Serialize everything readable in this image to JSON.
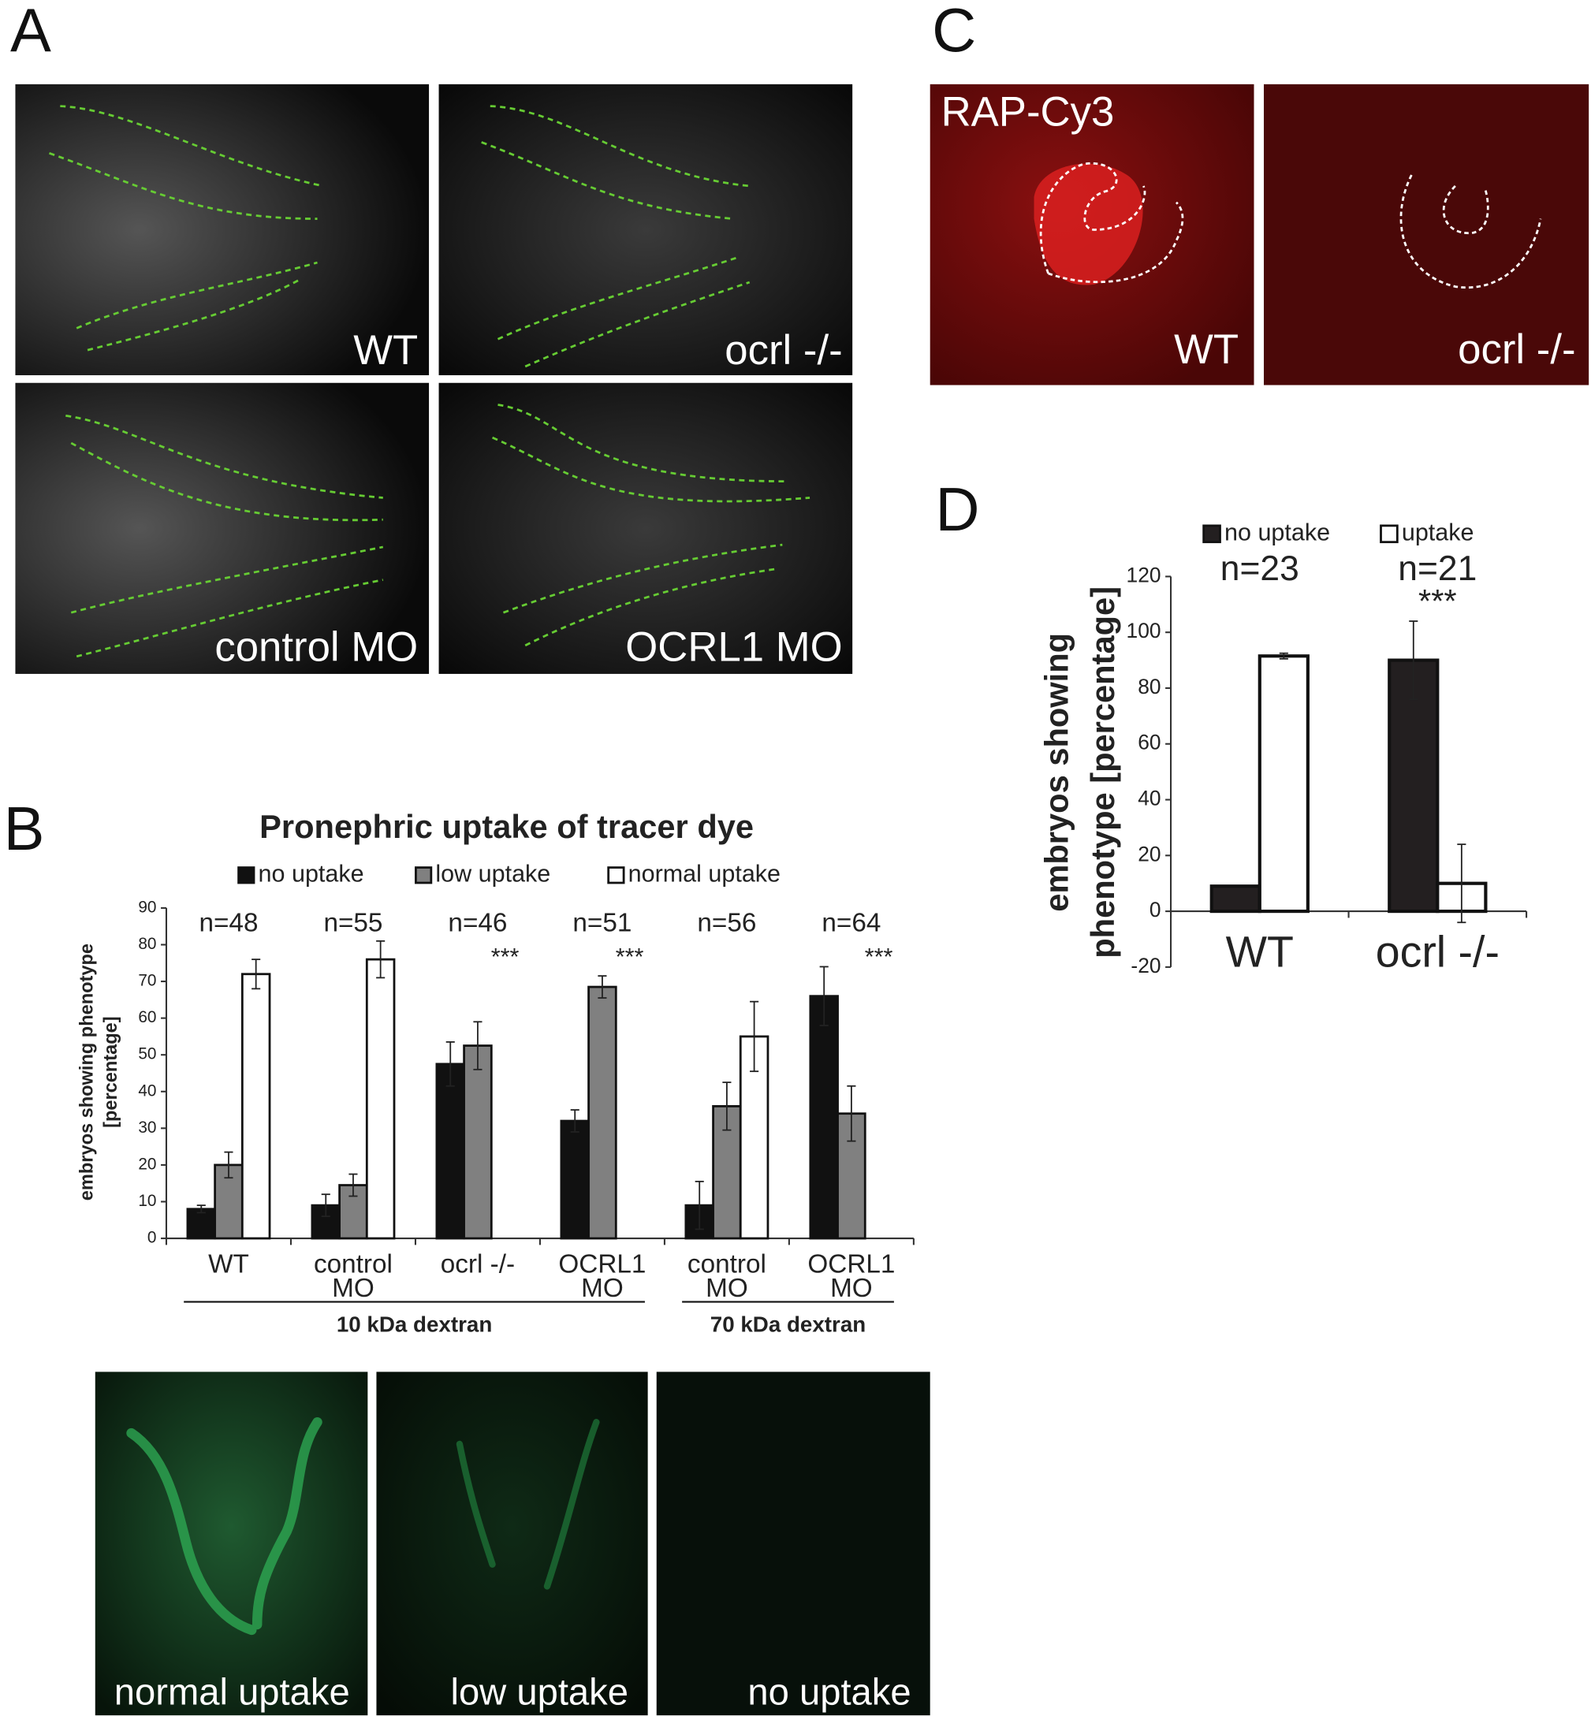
{
  "panel_labels": [
    "A",
    "B",
    "C",
    "D"
  ],
  "panel_a": {
    "labels": [
      "WT",
      "ocrl -/-",
      "control MO",
      "OCRL1 MO"
    ]
  },
  "panel_c": {
    "labels": [
      "RAP-Cy3",
      "WT",
      "ocrl -/-"
    ]
  },
  "panel_b_images": {
    "labels": [
      "normal uptake",
      "low uptake",
      "no uptake"
    ]
  },
  "chart_data": [
    {
      "type": "bar",
      "title": "Pronephric uptake of tracer dye",
      "ylabel": [
        "embryos showing phenotype",
        "[percentage]"
      ],
      "categories": [
        [
          "WT"
        ],
        [
          "control",
          "MO"
        ],
        [
          "ocrl -/-"
        ],
        [
          "OCRL1",
          "MO"
        ],
        [
          "control",
          "MO"
        ],
        [
          "OCRL1",
          "MO"
        ]
      ],
      "n_labels": [
        "n=48",
        "n=55",
        "n=46",
        "n=51",
        "n=56",
        "n=64"
      ],
      "significance": [
        null,
        null,
        "***",
        "***",
        null,
        "***"
      ],
      "groups": [
        {
          "label": "10 kDa dextran",
          "size": 4
        },
        {
          "label": "70 kDa dextran",
          "size": 2
        }
      ],
      "series": [
        {
          "name": "no uptake",
          "color": "#111111",
          "values": [
            8,
            9,
            47.5,
            32,
            9,
            66
          ],
          "errors": [
            1,
            3,
            6,
            3,
            6.5,
            8
          ]
        },
        {
          "name": "low uptake",
          "color": "#808080",
          "values": [
            20,
            14.5,
            52.5,
            68.5,
            36,
            34
          ],
          "errors": [
            3.5,
            3,
            6.5,
            3,
            6.5,
            7.5
          ]
        },
        {
          "name": "normal uptake",
          "color": "#ffffff",
          "values": [
            72,
            76,
            null,
            null,
            55,
            null
          ],
          "errors": [
            4,
            5,
            null,
            null,
            9.5,
            null
          ]
        }
      ],
      "ylim": [
        0,
        90
      ],
      "yticks": [
        0,
        10,
        20,
        30,
        40,
        50,
        60,
        70,
        80,
        90
      ]
    },
    {
      "type": "bar",
      "ylabel": [
        "embryos showing",
        "phenotype [percentage]"
      ],
      "categories": [
        [
          "WT"
        ],
        [
          "ocrl -/-"
        ]
      ],
      "n_labels": [
        "n=23",
        "n=21"
      ],
      "significance": [
        null,
        "***"
      ],
      "series": [
        {
          "name": "no uptake",
          "color": "#231f20",
          "values": [
            9,
            90
          ],
          "errors": [
            null,
            14
          ]
        },
        {
          "name": "uptake",
          "color": "#ffffff",
          "values": [
            91.5,
            10
          ],
          "errors": [
            1,
            14
          ]
        }
      ],
      "ylim": [
        -20,
        120
      ],
      "yticks": [
        -20,
        0,
        20,
        40,
        60,
        80,
        100,
        120
      ]
    }
  ]
}
